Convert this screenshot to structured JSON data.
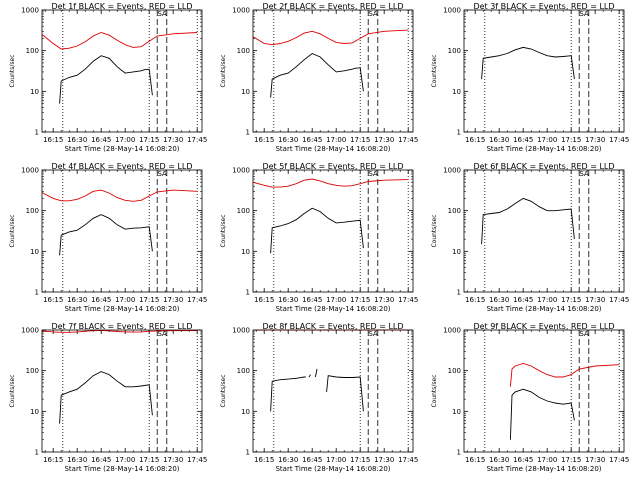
{
  "chart_data": [
    {
      "type": "line",
      "title": "Det 1f BLACK = Events, RED = LLD",
      "xlabel": "Start Time (28-May-14 16:08:20)",
      "ylabel": "Counts/sec",
      "xtick_labels": [
        "16:15",
        "16:30",
        "16:45",
        "17:00",
        "17:15",
        "17:30",
        "17:45"
      ],
      "ytick_labels": [
        "1",
        "10",
        "100",
        "1000"
      ],
      "yscale": "log",
      "ylim": [
        1,
        1000
      ],
      "marker_label": "SA",
      "vlines_dotted": [
        "16:21",
        "17:15",
        "17:45"
      ],
      "vlines_dashed": [
        "17:20",
        "17:26"
      ],
      "series": [
        {
          "color": "#000000",
          "x": [
            "16:19",
            "16:20",
            "16:25",
            "16:30",
            "16:35",
            "16:40",
            "16:45",
            "16:50",
            "16:55",
            "17:00",
            "17:05",
            "17:10",
            "17:12",
            "17:15",
            "17:17"
          ],
          "y": [
            5,
            18,
            22,
            25,
            35,
            55,
            75,
            65,
            40,
            28,
            30,
            32,
            34,
            35,
            8
          ]
        },
        {
          "color": "#dd0000",
          "x": [
            "16:08",
            "16:15",
            "16:20",
            "16:25",
            "16:30",
            "16:35",
            "16:40",
            "16:45",
            "16:50",
            "16:55",
            "17:00",
            "17:05",
            "17:10",
            "17:15",
            "17:20",
            "17:30",
            "17:45"
          ],
          "y": [
            250,
            150,
            110,
            115,
            130,
            165,
            230,
            280,
            240,
            180,
            140,
            120,
            125,
            170,
            230,
            260,
            280
          ]
        }
      ]
    },
    {
      "type": "line",
      "title": "Det 2f BLACK = Events, RED = LLD",
      "xlabel": "Start Time (28-May-14 16:08:20)",
      "ylabel": "Counts/sec",
      "xtick_labels": [
        "16:15",
        "16:30",
        "16:45",
        "17:00",
        "17:15",
        "17:30",
        "17:45"
      ],
      "ytick_labels": [
        "1",
        "10",
        "100",
        "1000"
      ],
      "yscale": "log",
      "ylim": [
        1,
        1000
      ],
      "marker_label": "SA",
      "vlines_dotted": [
        "16:21",
        "17:15",
        "17:45"
      ],
      "vlines_dashed": [
        "17:20",
        "17:26"
      ],
      "series": [
        {
          "color": "#000000",
          "x": [
            "16:19",
            "16:20",
            "16:25",
            "16:30",
            "16:35",
            "16:40",
            "16:45",
            "16:50",
            "16:55",
            "17:00",
            "17:05",
            "17:10",
            "17:12",
            "17:15",
            "17:17"
          ],
          "y": [
            7,
            20,
            25,
            28,
            40,
            60,
            85,
            70,
            45,
            30,
            32,
            35,
            37,
            38,
            10
          ]
        },
        {
          "color": "#dd0000",
          "x": [
            "16:08",
            "16:15",
            "16:20",
            "16:25",
            "16:30",
            "16:35",
            "16:40",
            "16:45",
            "16:50",
            "16:55",
            "17:00",
            "17:05",
            "17:10",
            "17:15",
            "17:20",
            "17:30",
            "17:45"
          ],
          "y": [
            220,
            150,
            140,
            150,
            170,
            210,
            270,
            300,
            260,
            200,
            160,
            150,
            155,
            200,
            260,
            300,
            320
          ]
        }
      ]
    },
    {
      "type": "line",
      "title": "Det 3f BLACK = Events, RED = LLD",
      "xlabel": "Start Time (28-May-14 16:08:20)",
      "ylabel": "Counts/sec",
      "xtick_labels": [
        "16:15",
        "16:30",
        "16:45",
        "17:00",
        "17:15",
        "17:30",
        "17:45"
      ],
      "ytick_labels": [
        "1",
        "10",
        "100",
        "1000"
      ],
      "yscale": "log",
      "ylim": [
        1,
        1000
      ],
      "marker_label": "SA",
      "vlines_dotted": [
        "16:21",
        "17:15",
        "17:45"
      ],
      "vlines_dashed": [
        "17:20",
        "17:26"
      ],
      "series": [
        {
          "color": "#000000",
          "x": [
            "16:19",
            "16:20",
            "16:25",
            "16:30",
            "16:35",
            "16:40",
            "16:45",
            "16:50",
            "16:55",
            "17:00",
            "17:05",
            "17:10",
            "17:15",
            "17:17"
          ],
          "y": [
            20,
            65,
            70,
            75,
            85,
            105,
            120,
            110,
            90,
            75,
            70,
            72,
            75,
            20
          ]
        }
      ]
    },
    {
      "type": "line",
      "title": "Det 4f BLACK = Events, RED = LLD",
      "xlabel": "Start Time (28-May-14 16:08:20)",
      "ylabel": "Counts/sec",
      "xtick_labels": [
        "16:15",
        "16:30",
        "16:45",
        "17:00",
        "17:15",
        "17:30",
        "17:45"
      ],
      "ytick_labels": [
        "1",
        "10",
        "100",
        "1000"
      ],
      "yscale": "log",
      "ylim": [
        1,
        1000
      ],
      "marker_label": "SA",
      "vlines_dotted": [
        "16:21",
        "17:15",
        "17:45"
      ],
      "vlines_dashed": [
        "17:20",
        "17:26"
      ],
      "series": [
        {
          "color": "#000000",
          "x": [
            "16:19",
            "16:20",
            "16:25",
            "16:30",
            "16:35",
            "16:40",
            "16:45",
            "16:50",
            "16:55",
            "17:00",
            "17:05",
            "17:10",
            "17:15",
            "17:17"
          ],
          "y": [
            8,
            25,
            30,
            33,
            45,
            65,
            80,
            65,
            45,
            35,
            37,
            38,
            40,
            10
          ]
        },
        {
          "color": "#dd0000",
          "x": [
            "16:08",
            "16:15",
            "16:20",
            "16:25",
            "16:30",
            "16:35",
            "16:40",
            "16:45",
            "16:50",
            "16:55",
            "17:00",
            "17:05",
            "17:10",
            "17:15",
            "17:20",
            "17:30",
            "17:45"
          ],
          "y": [
            280,
            200,
            175,
            175,
            190,
            230,
            300,
            320,
            270,
            210,
            180,
            170,
            180,
            230,
            290,
            320,
            300
          ]
        }
      ]
    },
    {
      "type": "line",
      "title": "Det 5f BLACK = Events, RED = LLD",
      "xlabel": "Start Time (28-May-14 16:08:20)",
      "ylabel": "Counts/sec",
      "xtick_labels": [
        "16:15",
        "16:30",
        "16:45",
        "17:00",
        "17:15",
        "17:30",
        "17:45"
      ],
      "ytick_labels": [
        "1",
        "10",
        "100",
        "1000"
      ],
      "yscale": "log",
      "ylim": [
        1,
        1000
      ],
      "marker_label": "SA",
      "vlines_dotted": [
        "16:21",
        "17:15",
        "17:45"
      ],
      "vlines_dashed": [
        "17:20",
        "17:26"
      ],
      "series": [
        {
          "color": "#000000",
          "x": [
            "16:19",
            "16:20",
            "16:25",
            "16:30",
            "16:35",
            "16:40",
            "16:45",
            "16:50",
            "16:55",
            "17:00",
            "17:05",
            "17:10",
            "17:15",
            "17:17"
          ],
          "y": [
            9,
            38,
            42,
            48,
            60,
            85,
            115,
            95,
            65,
            50,
            52,
            55,
            58,
            12
          ]
        },
        {
          "color": "#dd0000",
          "x": [
            "16:08",
            "16:15",
            "16:20",
            "16:25",
            "16:30",
            "16:35",
            "16:40",
            "16:45",
            "16:50",
            "16:55",
            "17:00",
            "17:05",
            "17:10",
            "17:15",
            "17:20",
            "17:30",
            "17:45"
          ],
          "y": [
            500,
            420,
            380,
            380,
            400,
            460,
            560,
            600,
            540,
            460,
            420,
            400,
            410,
            460,
            520,
            560,
            580
          ]
        }
      ]
    },
    {
      "type": "line",
      "title": "Det 6f BLACK = Events, RED = LLD",
      "xlabel": "Start Time (28-May-14 16:08:20)",
      "ylabel": "Counts/sec",
      "xtick_labels": [
        "16:15",
        "16:30",
        "16:45",
        "17:00",
        "17:15",
        "17:30",
        "17:45"
      ],
      "ytick_labels": [
        "1",
        "10",
        "100",
        "1000"
      ],
      "yscale": "log",
      "ylim": [
        1,
        1000
      ],
      "marker_label": "SA",
      "vlines_dotted": [
        "16:21",
        "17:15",
        "17:45"
      ],
      "vlines_dashed": [
        "17:20",
        "17:26"
      ],
      "series": [
        {
          "color": "#000000",
          "x": [
            "16:19",
            "16:20",
            "16:25",
            "16:30",
            "16:35",
            "16:40",
            "16:45",
            "16:50",
            "16:55",
            "17:00",
            "17:05",
            "17:10",
            "17:15",
            "17:17"
          ],
          "y": [
            15,
            80,
            85,
            90,
            110,
            150,
            200,
            170,
            125,
            100,
            100,
            105,
            110,
            20
          ]
        }
      ]
    },
    {
      "type": "line",
      "title": "Det 7f BLACK = Events, RED = LLD",
      "xlabel": "Start Time (28-May-14 16:08:20)",
      "ylabel": "Counts/sec",
      "xtick_labels": [
        "16:15",
        "16:30",
        "16:45",
        "17:00",
        "17:15",
        "17:30",
        "17:45"
      ],
      "ytick_labels": [
        "1",
        "10",
        "100",
        "1000"
      ],
      "yscale": "log",
      "ylim": [
        1,
        1000
      ],
      "marker_label": "SA",
      "vlines_dotted": [
        "16:21",
        "17:15",
        "17:45"
      ],
      "vlines_dashed": [
        "17:20",
        "17:26"
      ],
      "series": [
        {
          "color": "#000000",
          "x": [
            "16:19",
            "16:20",
            "16:25",
            "16:30",
            "16:35",
            "16:40",
            "16:45",
            "16:50",
            "16:55",
            "17:00",
            "17:05",
            "17:10",
            "17:15",
            "17:17"
          ],
          "y": [
            5,
            25,
            30,
            35,
            50,
            75,
            95,
            80,
            55,
            40,
            40,
            42,
            45,
            8
          ]
        },
        {
          "color": "#dd0000",
          "x": [
            "16:08",
            "16:15",
            "16:20",
            "16:25",
            "16:30",
            "16:35",
            "16:40",
            "16:45",
            "16:50",
            "16:55",
            "17:00",
            "17:05",
            "17:10",
            "17:15",
            "17:20",
            "17:30",
            "17:45"
          ],
          "y": [
            950,
            900,
            880,
            880,
            900,
            930,
            960,
            980,
            950,
            920,
            900,
            890,
            900,
            930,
            950,
            960,
            970
          ]
        }
      ]
    },
    {
      "type": "line",
      "title": "Det 8f BLACK = Events, RED = LLD",
      "xlabel": "Start Time (28-May-14 16:08:20)",
      "ylabel": "Counts/sec",
      "xtick_labels": [
        "16:15",
        "16:30",
        "16:45",
        "17:00",
        "17:15",
        "17:30",
        "17:45"
      ],
      "ytick_labels": [
        "1",
        "10",
        "100",
        "1000"
      ],
      "yscale": "log",
      "ylim": [
        1,
        1000
      ],
      "marker_label": "SA",
      "vlines_dotted": [
        "16:21",
        "17:15",
        "17:45"
      ],
      "vlines_dashed": [
        "17:20",
        "17:26"
      ],
      "series": [
        {
          "color": "#000000",
          "x": [
            "16:19",
            "16:20",
            "16:25",
            "16:30",
            "16:35",
            "16:40",
            "16:41"
          ],
          "y": [
            10,
            55,
            60,
            62,
            65,
            70,
            70
          ]
        },
        {
          "color": "#000000",
          "x": [
            "16:43",
            "16:44"
          ],
          "y": [
            70,
            80
          ]
        },
        {
          "color": "#000000",
          "x": [
            "16:47",
            "16:48"
          ],
          "y": [
            70,
            110
          ]
        },
        {
          "color": "#000000",
          "x": [
            "16:54",
            "16:55",
            "17:00",
            "17:05",
            "17:10",
            "17:15",
            "17:17"
          ],
          "y": [
            30,
            75,
            70,
            68,
            68,
            70,
            10
          ]
        },
        {
          "color": "#dd0000",
          "x": [
            "16:08",
            "16:30",
            "17:00",
            "17:30",
            "17:45"
          ],
          "y": [
            1000,
            1000,
            1000,
            1000,
            1000
          ]
        }
      ]
    },
    {
      "type": "line",
      "title": "Det 9f BLACK = Events, RED = LLD",
      "xlabel": "Start Time (28-May-14 16:08:20)",
      "ylabel": "Counts/sec",
      "xtick_labels": [
        "16:15",
        "16:30",
        "16:45",
        "17:00",
        "17:15",
        "17:30",
        "17:45"
      ],
      "ytick_labels": [
        "1",
        "10",
        "100",
        "1000"
      ],
      "yscale": "log",
      "ylim": [
        1,
        1000
      ],
      "marker_label": "SA",
      "vlines_dotted": [
        "16:21",
        "17:15",
        "17:45"
      ],
      "vlines_dashed": [
        "17:20",
        "17:26"
      ],
      "series": [
        {
          "color": "#000000",
          "x": [
            "16:37",
            "16:38",
            "16:40",
            "16:45",
            "16:50",
            "16:55",
            "17:00",
            "17:05",
            "17:10",
            "17:15",
            "17:17"
          ],
          "y": [
            2,
            25,
            30,
            35,
            30,
            22,
            18,
            16,
            15,
            16,
            6
          ]
        },
        {
          "color": "#dd0000",
          "x": [
            "16:37",
            "16:38",
            "16:40",
            "16:45",
            "16:50",
            "16:55",
            "17:00",
            "17:05",
            "17:10",
            "17:15",
            "17:20",
            "17:30",
            "17:45"
          ],
          "y": [
            40,
            110,
            130,
            150,
            130,
            100,
            80,
            70,
            70,
            80,
            110,
            130,
            140
          ]
        }
      ]
    }
  ]
}
